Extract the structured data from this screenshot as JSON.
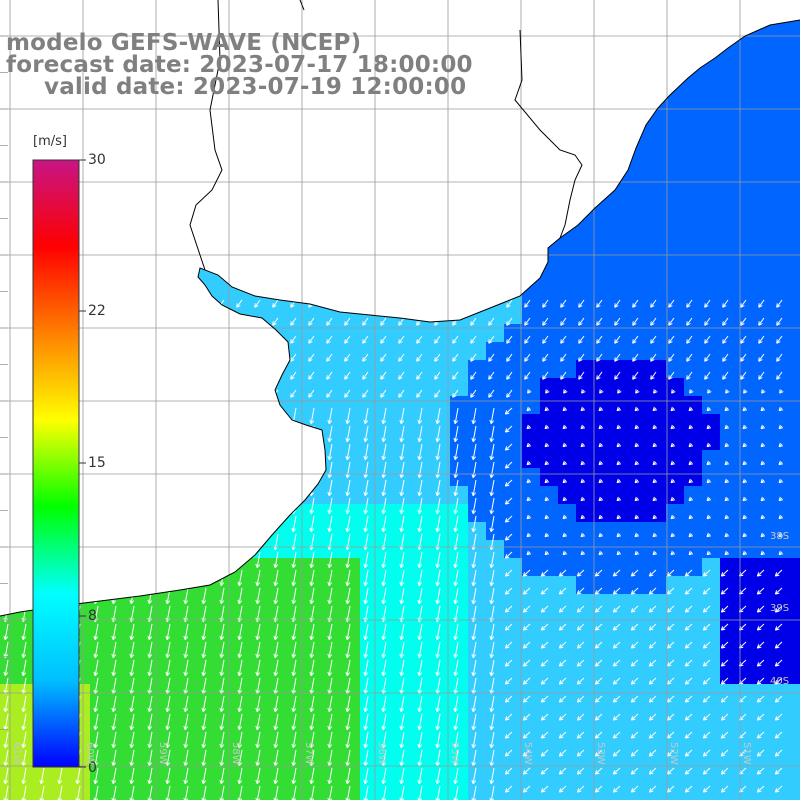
{
  "map": {
    "title_line1": "modelo GEFS-WAVE (NCEP)",
    "title_line2": "forecast date: 2023-07-17 18:00:00",
    "title_line3": "valid date: 2023-07-19 12:00:00",
    "variable_unit": "[m/s]",
    "colorbar_ticks": [
      "30",
      "22",
      "15",
      "8",
      "0"
    ],
    "colorbar_colors": [
      "#0000ff",
      "#00bfff",
      "#00ffff",
      "#00ff00",
      "#ffff00",
      "#ff8000",
      "#ff0000",
      "#c71585"
    ],
    "lat_labels": [
      "38S",
      "39S",
      "40S"
    ],
    "lon_labels": [
      "61W",
      "60W",
      "59W",
      "58W",
      "57W",
      "56W",
      "55W",
      "54W",
      "53W",
      "52W",
      "51W"
    ],
    "sea_colors": {
      "strong": "#0000e8",
      "medium": "#0066ff",
      "light": "#33ccff",
      "cyan": "#00ffee",
      "green": "#33dd33",
      "yellowgreen": "#aaee22"
    },
    "land_color": "#ffffff",
    "grid_color": "#9a9a9a",
    "coast_color": "#000000",
    "vector_color": "#ffffff"
  }
}
